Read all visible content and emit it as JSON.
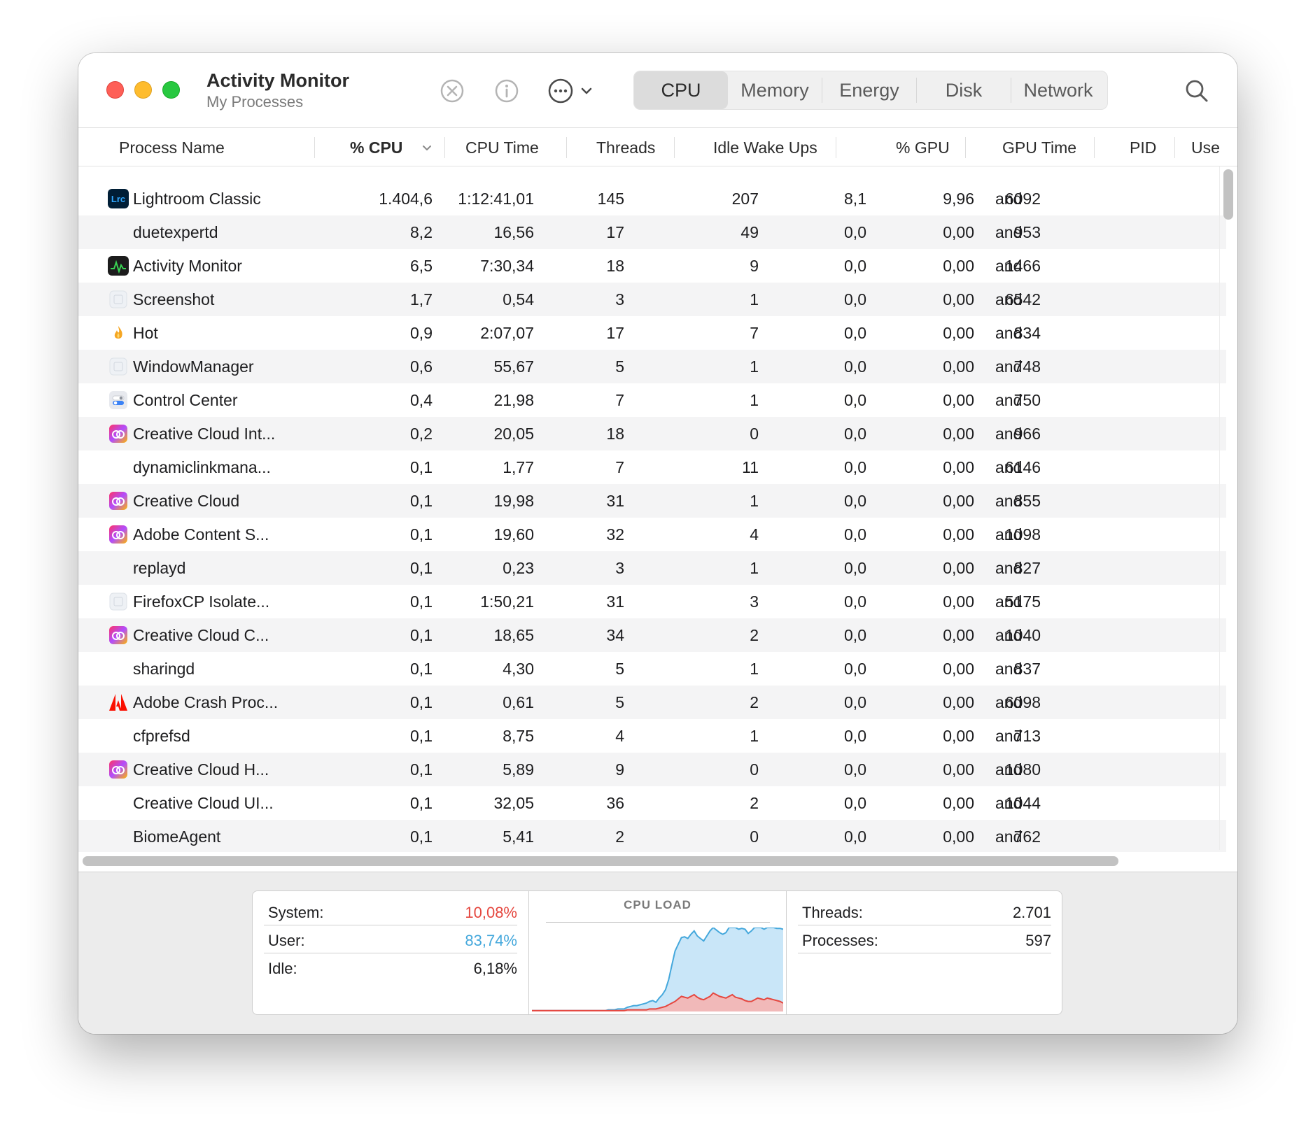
{
  "window": {
    "title": "Activity Monitor",
    "subtitle": "My Processes",
    "tabs": [
      {
        "label": "CPU",
        "active": true
      },
      {
        "label": "Memory",
        "active": false
      },
      {
        "label": "Energy",
        "active": false
      },
      {
        "label": "Disk",
        "active": false
      },
      {
        "label": "Network",
        "active": false
      }
    ]
  },
  "table": {
    "columns": [
      "Process Name",
      "% CPU",
      "CPU Time",
      "Threads",
      "Idle Wake Ups",
      "% GPU",
      "GPU Time",
      "PID",
      "Use"
    ],
    "sorted_column": "% CPU",
    "rows": [
      {
        "icon": "lightroom-icon",
        "name": "Lightroom Classic",
        "cpu": "1.404,6",
        "cpu_time": "1:12:41,01",
        "threads": "145",
        "idle_wake_ups": "207",
        "gpu": "8,1",
        "gpu_time": "9,96",
        "pid": "6092",
        "user": "and"
      },
      {
        "icon": "",
        "name": "duetexpertd",
        "cpu": "8,2",
        "cpu_time": "16,56",
        "threads": "17",
        "idle_wake_ups": "49",
        "gpu": "0,0",
        "gpu_time": "0,00",
        "pid": "953",
        "user": "and"
      },
      {
        "icon": "activity-monitor-icon",
        "name": "Activity Monitor",
        "cpu": "6,5",
        "cpu_time": "7:30,34",
        "threads": "18",
        "idle_wake_ups": "9",
        "gpu": "0,0",
        "gpu_time": "0,00",
        "pid": "1466",
        "user": "and"
      },
      {
        "icon": "generic-app-icon",
        "name": "Screenshot",
        "cpu": "1,7",
        "cpu_time": "0,54",
        "threads": "3",
        "idle_wake_ups": "1",
        "gpu": "0,0",
        "gpu_time": "0,00",
        "pid": "6542",
        "user": "and"
      },
      {
        "icon": "flame-icon",
        "name": "Hot",
        "cpu": "0,9",
        "cpu_time": "2:07,07",
        "threads": "17",
        "idle_wake_ups": "7",
        "gpu": "0,0",
        "gpu_time": "0,00",
        "pid": "834",
        "user": "and"
      },
      {
        "icon": "generic-app-icon",
        "name": "WindowManager",
        "cpu": "0,6",
        "cpu_time": "55,67",
        "threads": "5",
        "idle_wake_ups": "1",
        "gpu": "0,0",
        "gpu_time": "0,00",
        "pid": "748",
        "user": "and"
      },
      {
        "icon": "control-center-icon",
        "name": "Control Center",
        "cpu": "0,4",
        "cpu_time": "21,98",
        "threads": "7",
        "idle_wake_ups": "1",
        "gpu": "0,0",
        "gpu_time": "0,00",
        "pid": "750",
        "user": "and"
      },
      {
        "icon": "creative-cloud-icon",
        "name": "Creative Cloud Int...",
        "cpu": "0,2",
        "cpu_time": "20,05",
        "threads": "18",
        "idle_wake_ups": "0",
        "gpu": "0,0",
        "gpu_time": "0,00",
        "pid": "966",
        "user": "and"
      },
      {
        "icon": "",
        "name": "dynamiclinkmana...",
        "cpu": "0,1",
        "cpu_time": "1,77",
        "threads": "7",
        "idle_wake_ups": "11",
        "gpu": "0,0",
        "gpu_time": "0,00",
        "pid": "6146",
        "user": "and"
      },
      {
        "icon": "creative-cloud-icon",
        "name": "Creative Cloud",
        "cpu": "0,1",
        "cpu_time": "19,98",
        "threads": "31",
        "idle_wake_ups": "1",
        "gpu": "0,0",
        "gpu_time": "0,00",
        "pid": "855",
        "user": "and"
      },
      {
        "icon": "creative-cloud-icon",
        "name": "Adobe Content S...",
        "cpu": "0,1",
        "cpu_time": "19,60",
        "threads": "32",
        "idle_wake_ups": "4",
        "gpu": "0,0",
        "gpu_time": "0,00",
        "pid": "1098",
        "user": "and"
      },
      {
        "icon": "",
        "name": "replayd",
        "cpu": "0,1",
        "cpu_time": "0,23",
        "threads": "3",
        "idle_wake_ups": "1",
        "gpu": "0,0",
        "gpu_time": "0,00",
        "pid": "827",
        "user": "and"
      },
      {
        "icon": "generic-app-icon",
        "name": "FirefoxCP Isolate...",
        "cpu": "0,1",
        "cpu_time": "1:50,21",
        "threads": "31",
        "idle_wake_ups": "3",
        "gpu": "0,0",
        "gpu_time": "0,00",
        "pid": "5175",
        "user": "and"
      },
      {
        "icon": "creative-cloud-icon",
        "name": "Creative Cloud C...",
        "cpu": "0,1",
        "cpu_time": "18,65",
        "threads": "34",
        "idle_wake_ups": "2",
        "gpu": "0,0",
        "gpu_time": "0,00",
        "pid": "1040",
        "user": "and"
      },
      {
        "icon": "",
        "name": "sharingd",
        "cpu": "0,1",
        "cpu_time": "4,30",
        "threads": "5",
        "idle_wake_ups": "1",
        "gpu": "0,0",
        "gpu_time": "0,00",
        "pid": "837",
        "user": "and"
      },
      {
        "icon": "adobe-icon",
        "name": "Adobe Crash Proc...",
        "cpu": "0,1",
        "cpu_time": "0,61",
        "threads": "5",
        "idle_wake_ups": "2",
        "gpu": "0,0",
        "gpu_time": "0,00",
        "pid": "6098",
        "user": "and"
      },
      {
        "icon": "",
        "name": "cfprefsd",
        "cpu": "0,1",
        "cpu_time": "8,75",
        "threads": "4",
        "idle_wake_ups": "1",
        "gpu": "0,0",
        "gpu_time": "0,00",
        "pid": "713",
        "user": "and"
      },
      {
        "icon": "creative-cloud-icon",
        "name": "Creative Cloud H...",
        "cpu": "0,1",
        "cpu_time": "5,89",
        "threads": "9",
        "idle_wake_ups": "0",
        "gpu": "0,0",
        "gpu_time": "0,00",
        "pid": "1080",
        "user": "and"
      },
      {
        "icon": "",
        "name": "Creative Cloud UI...",
        "cpu": "0,1",
        "cpu_time": "32,05",
        "threads": "36",
        "idle_wake_ups": "2",
        "gpu": "0,0",
        "gpu_time": "0,00",
        "pid": "1044",
        "user": "and"
      },
      {
        "icon": "",
        "name": "BiomeAgent",
        "cpu": "0,1",
        "cpu_time": "5,41",
        "threads": "2",
        "idle_wake_ups": "0",
        "gpu": "0,0",
        "gpu_time": "0,00",
        "pid": "762",
        "user": "and"
      }
    ]
  },
  "summary": {
    "system_label": "System:",
    "system_value": "10,08%",
    "user_label": "User:",
    "user_value": "83,74%",
    "idle_label": "Idle:",
    "idle_value": "6,18%",
    "cpu_load_title": "CPU LOAD",
    "threads_label": "Threads:",
    "threads_value": "2.701",
    "processes_label": "Processes:",
    "processes_value": "597"
  },
  "colors": {
    "system": "#e5473f",
    "user": "#45a8dc",
    "user_fill": "#c9e6f8",
    "system_fill": "#f1b9b9"
  },
  "cpu_load_series": {
    "user": [
      0,
      0,
      0,
      0,
      0,
      0,
      0,
      0,
      0,
      0,
      0,
      0,
      0,
      0,
      0,
      0,
      0,
      0,
      0,
      0,
      0,
      0,
      0,
      0,
      1,
      1,
      1,
      2,
      2,
      2,
      3,
      4,
      5,
      5,
      6,
      7,
      8,
      9,
      10,
      8,
      12,
      15,
      20,
      30,
      45,
      60,
      65,
      70,
      72,
      71,
      74,
      76,
      73,
      72,
      70,
      74,
      78,
      80,
      77,
      76,
      75,
      78,
      82,
      86,
      83,
      82,
      84,
      85,
      81,
      84,
      86,
      87,
      88,
      84,
      85,
      86,
      87,
      86,
      87,
      88
    ],
    "system": [
      1,
      1,
      1,
      1,
      1,
      1,
      1,
      1,
      1,
      1,
      1,
      1,
      1,
      1,
      1,
      1,
      1,
      1,
      1,
      1,
      1,
      1,
      1,
      1,
      1,
      1,
      1,
      1,
      1,
      1,
      2,
      2,
      2,
      2,
      2,
      2,
      2,
      3,
      3,
      3,
      4,
      5,
      6,
      8,
      10,
      12,
      15,
      18,
      17,
      16,
      18,
      20,
      17,
      15,
      14,
      16,
      18,
      22,
      20,
      18,
      17,
      16,
      18,
      20,
      17,
      16,
      15,
      13,
      12,
      12,
      14,
      16,
      15,
      14,
      16,
      15,
      14,
      13,
      12,
      10
    ]
  }
}
